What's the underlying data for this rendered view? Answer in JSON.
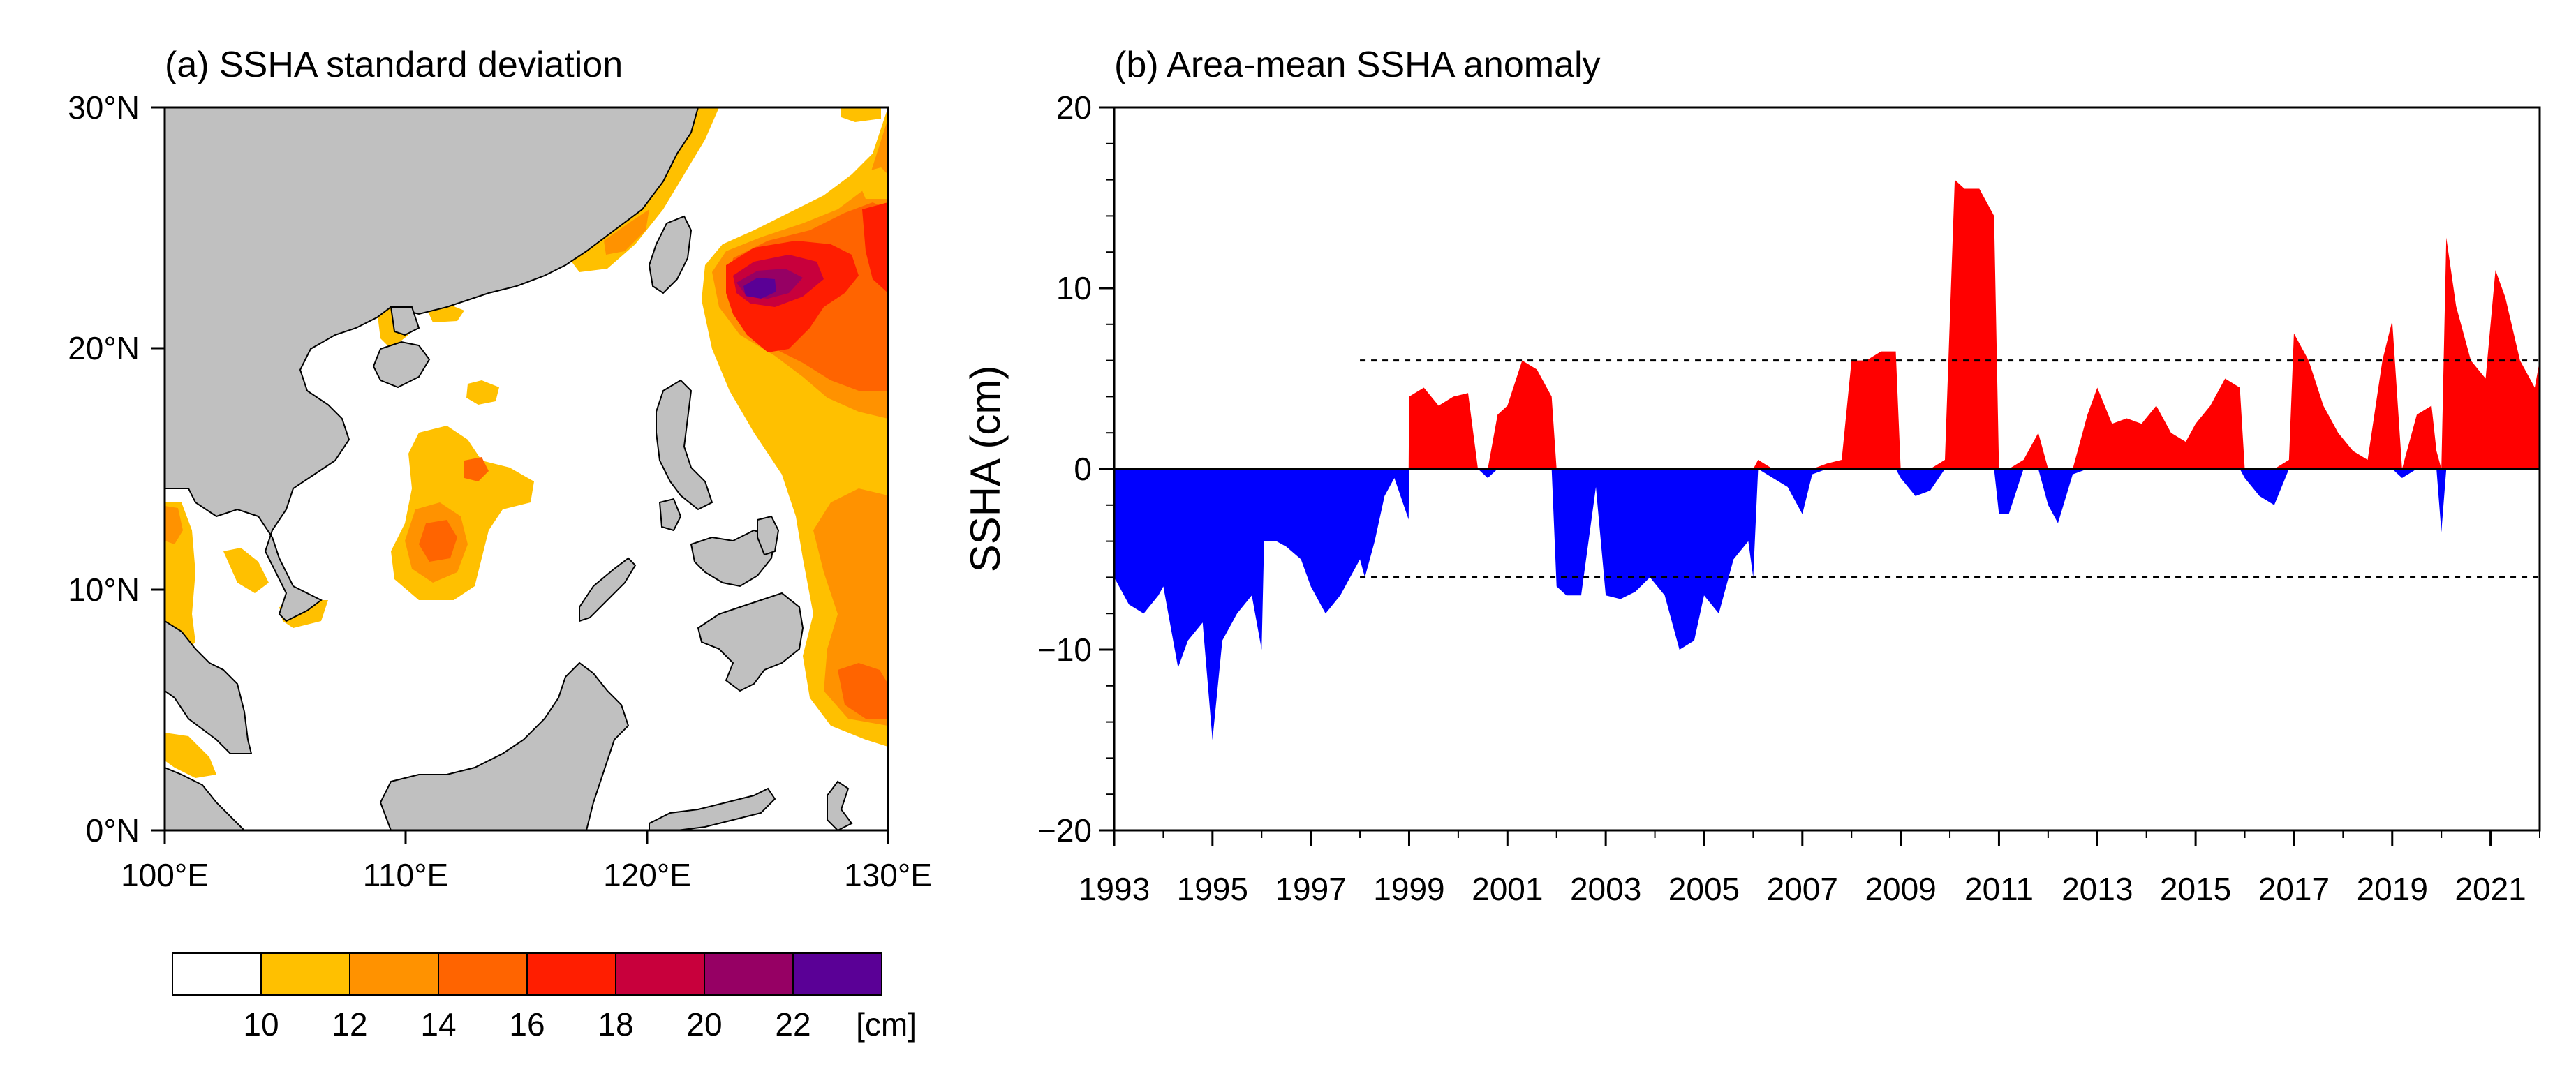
{
  "chart_data": [
    {
      "type": "heatmap",
      "title": "(a) SSHA standard deviation",
      "x_ticks": [
        "100°E",
        "110°E",
        "120°E",
        "130°E"
      ],
      "y_ticks": [
        "30°N",
        "20°N",
        "10°N",
        "0°N"
      ],
      "x_range": [
        100,
        130
      ],
      "y_range": [
        0,
        30
      ],
      "land_color": "#c0c0c0",
      "colorbar": {
        "unit": "[cm]",
        "levels": [
          "10",
          "12",
          "14",
          "16",
          "18",
          "20",
          "22"
        ],
        "colors": [
          "#ffffff",
          "#ffc000",
          "#ff9200",
          "#ff6400",
          "#ff1e00",
          "#c8003c",
          "#960064",
          "#5a0096"
        ]
      },
      "field_cells": [
        {
          "lon": 124.5,
          "lat": 22.3,
          "value": 23
        },
        {
          "lon": 124.0,
          "lat": 22.5,
          "value": 21
        },
        {
          "lon": 125.5,
          "lat": 22.5,
          "value": 19
        },
        {
          "lon": 123.5,
          "lat": 21.0,
          "value": 17
        },
        {
          "lon": 127.5,
          "lat": 22.0,
          "value": 15
        },
        {
          "lon": 126.5,
          "lat": 17.0,
          "value": 13
        },
        {
          "lon": 128.5,
          "lat": 6.0,
          "value": 15
        },
        {
          "lon": 111.5,
          "lat": 12.0,
          "value": 15
        },
        {
          "lon": 111.0,
          "lat": 14.5,
          "value": 11
        }
      ]
    },
    {
      "type": "area",
      "title": "(b) Area-mean SSHA anomaly",
      "ylabel": "SSHA (cm)",
      "ylim": [
        -20,
        20
      ],
      "xlim": [
        1993,
        2022
      ],
      "y_ticks": [
        "20",
        "10",
        "0",
        "−10",
        "−20"
      ],
      "x_tick_labels": [
        "1993",
        "1995",
        "1997",
        "1999",
        "2001",
        "2003",
        "2005",
        "2007",
        "2009",
        "2011",
        "2013",
        "2015",
        "2017",
        "2019",
        "2021"
      ],
      "threshold_lines": [
        6,
        -6
      ],
      "positive_color": "#ff0000",
      "negative_color": "#0000ff",
      "series": [
        {
          "name": "SSHA anomaly",
          "x": [
            1993.0,
            1993.3,
            1993.6,
            1993.9,
            1994.0,
            1994.3,
            1994.5,
            1994.8,
            1995.0,
            1995.2,
            1995.5,
            1995.8,
            1996.0,
            1996.05,
            1996.3,
            1996.5,
            1996.8,
            1997.0,
            1997.3,
            1997.6,
            1998.0,
            1998.1,
            1998.3,
            1998.5,
            1998.7,
            1998.99,
            1999.0,
            1999.3,
            1999.6,
            1999.9,
            2000.2,
            2000.4,
            2000.6,
            2000.8,
            2001.0,
            2001.3,
            2001.6,
            2001.9,
            2002.0,
            2002.2,
            2002.5,
            2002.8,
            2003.0,
            2003.3,
            2003.6,
            2003.9,
            2004.2,
            2004.5,
            2004.8,
            2005.0,
            2005.3,
            2005.6,
            2005.9,
            2006.0,
            2006.1,
            2006.4,
            2006.7,
            2007.0,
            2007.2,
            2007.5,
            2007.8,
            2008.0,
            2008.3,
            2008.6,
            2008.9,
            2009.0,
            2009.3,
            2009.6,
            2009.9,
            2010.1,
            2010.3,
            2010.6,
            2010.9,
            2011.0,
            2011.2,
            2011.5,
            2011.8,
            2012.0,
            2012.2,
            2012.5,
            2012.8,
            2013.0,
            2013.3,
            2013.6,
            2013.9,
            2014.2,
            2014.5,
            2014.8,
            2015.0,
            2015.3,
            2015.6,
            2015.9,
            2016.0,
            2016.3,
            2016.6,
            2016.9,
            2017.0,
            2017.3,
            2017.6,
            2017.9,
            2018.2,
            2018.5,
            2018.8,
            2019.0,
            2019.2,
            2019.5,
            2019.8,
            2019.9,
            2020.0,
            2020.1,
            2020.3,
            2020.6,
            2020.9,
            2021.1,
            2021.3,
            2021.6,
            2021.9,
            2022.0
          ],
          "values": [
            -6,
            -7.5,
            -8,
            -7,
            -6.5,
            -11,
            -9.5,
            -8.5,
            -15,
            -9.5,
            -8,
            -7,
            -10,
            -4,
            -4,
            -4.3,
            -5,
            -6.5,
            -8,
            -7,
            -5,
            -6,
            -4,
            -1.5,
            -0.5,
            -2.8,
            4,
            4.5,
            3.5,
            4,
            4.2,
            0,
            -0.5,
            3,
            3.5,
            6,
            5.5,
            4,
            -6.5,
            -7,
            -7,
            -1,
            -7,
            -7.2,
            -6.8,
            -6,
            -7,
            -10,
            -9.5,
            -7,
            -8,
            -5,
            -4,
            -6,
            0.5,
            -0.5,
            -1,
            -2.5,
            -0.3,
            0.3,
            0.5,
            6,
            6,
            6.5,
            6.5,
            -0.5,
            -1.5,
            -1.2,
            0.5,
            16,
            15.5,
            15.5,
            14,
            -2.5,
            -2.5,
            0.5,
            2,
            -2,
            -3,
            -0.3,
            3,
            4.5,
            2.5,
            2.8,
            2.5,
            3.5,
            2,
            1.5,
            2.5,
            3.5,
            5,
            4.5,
            -0.5,
            -1.5,
            -2,
            0.5,
            7.5,
            6,
            3.5,
            2,
            1,
            0.5,
            6,
            8.2,
            -0.5,
            3,
            3.5,
            1,
            -3.5,
            12.8,
            9,
            6,
            5,
            11,
            9.5,
            6,
            4.5,
            6
          ]
        }
      ]
    }
  ]
}
